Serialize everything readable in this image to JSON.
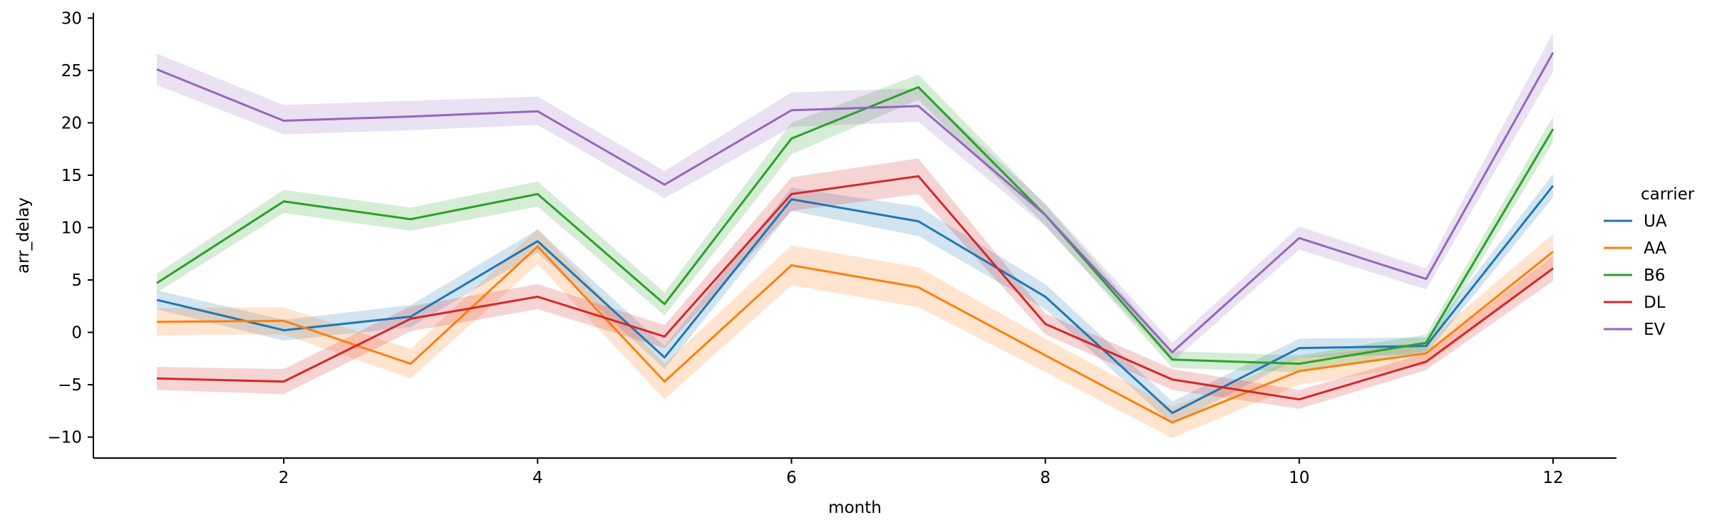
{
  "chart_data": {
    "type": "line",
    "xlabel": "month",
    "ylabel": "arr_delay",
    "xlim": [
      0.5,
      12.5
    ],
    "ylim": [
      -12,
      30.5
    ],
    "xticks": [
      2,
      4,
      6,
      8,
      10,
      12
    ],
    "yticks": [
      -10,
      -5,
      0,
      5,
      10,
      15,
      20,
      25,
      30
    ],
    "x": [
      1,
      2,
      3,
      4,
      5,
      6,
      7,
      8,
      9,
      10,
      11,
      12
    ],
    "legend": {
      "title": "carrier",
      "placement": "outside-right"
    },
    "grid": false,
    "series": [
      {
        "name": "UA",
        "color": "#1f77b4",
        "values": [
          3.1,
          0.2,
          1.5,
          8.7,
          -2.4,
          12.7,
          10.6,
          3.4,
          -7.7,
          -1.5,
          -1.3,
          14.0
        ],
        "lower": [
          2.2,
          -0.8,
          0.5,
          7.6,
          -3.5,
          11.6,
          9.2,
          2.2,
          -8.8,
          -2.4,
          -2.1,
          12.9
        ],
        "upper": [
          4.0,
          1.2,
          2.6,
          9.8,
          -1.3,
          13.8,
          12.0,
          4.6,
          -6.6,
          -0.6,
          -0.5,
          15.1
        ]
      },
      {
        "name": "AA",
        "color": "#ff7f0e",
        "values": [
          1.0,
          1.1,
          -3.0,
          8.2,
          -4.7,
          6.4,
          4.3,
          -2.2,
          -8.6,
          -3.7,
          -2.0,
          7.7
        ],
        "lower": [
          -0.3,
          -0.2,
          -4.4,
          6.5,
          -6.4,
          4.5,
          2.4,
          -3.8,
          -10.1,
          -5.0,
          -3.1,
          6.0
        ],
        "upper": [
          2.3,
          2.4,
          -1.6,
          9.9,
          -3.0,
          8.3,
          6.2,
          -0.6,
          -7.1,
          -2.4,
          -0.9,
          9.4
        ]
      },
      {
        "name": "B6",
        "color": "#2ca02c",
        "values": [
          4.7,
          12.5,
          10.8,
          13.2,
          2.7,
          18.5,
          23.4,
          11.2,
          -2.6,
          -3.0,
          -1.0,
          19.4
        ],
        "lower": [
          3.8,
          11.4,
          9.7,
          12.0,
          1.6,
          17.0,
          22.2,
          10.2,
          -3.4,
          -3.8,
          -1.8,
          18.2
        ],
        "upper": [
          5.6,
          13.6,
          11.9,
          14.4,
          3.8,
          20.0,
          24.6,
          12.2,
          -1.8,
          -2.2,
          -0.2,
          20.6
        ]
      },
      {
        "name": "DL",
        "color": "#d62728",
        "values": [
          -4.4,
          -4.7,
          1.3,
          3.4,
          -0.4,
          13.2,
          14.9,
          0.8,
          -4.5,
          -6.4,
          -2.8,
          6.1
        ],
        "lower": [
          -5.5,
          -5.9,
          0.1,
          2.2,
          -1.5,
          11.6,
          13.2,
          -0.2,
          -5.5,
          -7.3,
          -3.6,
          4.9
        ],
        "upper": [
          -3.3,
          -3.5,
          2.5,
          4.6,
          0.7,
          14.8,
          16.6,
          1.8,
          -3.5,
          -5.5,
          -2.0,
          7.3
        ]
      },
      {
        "name": "EV",
        "color": "#9467bd",
        "values": [
          25.1,
          20.2,
          20.6,
          21.1,
          14.1,
          21.2,
          21.6,
          11.2,
          -1.9,
          9.0,
          5.1,
          26.7
        ],
        "lower": [
          23.6,
          18.9,
          19.3,
          19.8,
          12.8,
          19.6,
          20.1,
          10.1,
          -2.8,
          7.9,
          4.1,
          24.9
        ],
        "upper": [
          26.6,
          21.7,
          22.1,
          22.5,
          15.4,
          22.9,
          23.3,
          12.3,
          -1.0,
          10.1,
          6.1,
          28.6
        ]
      }
    ]
  }
}
